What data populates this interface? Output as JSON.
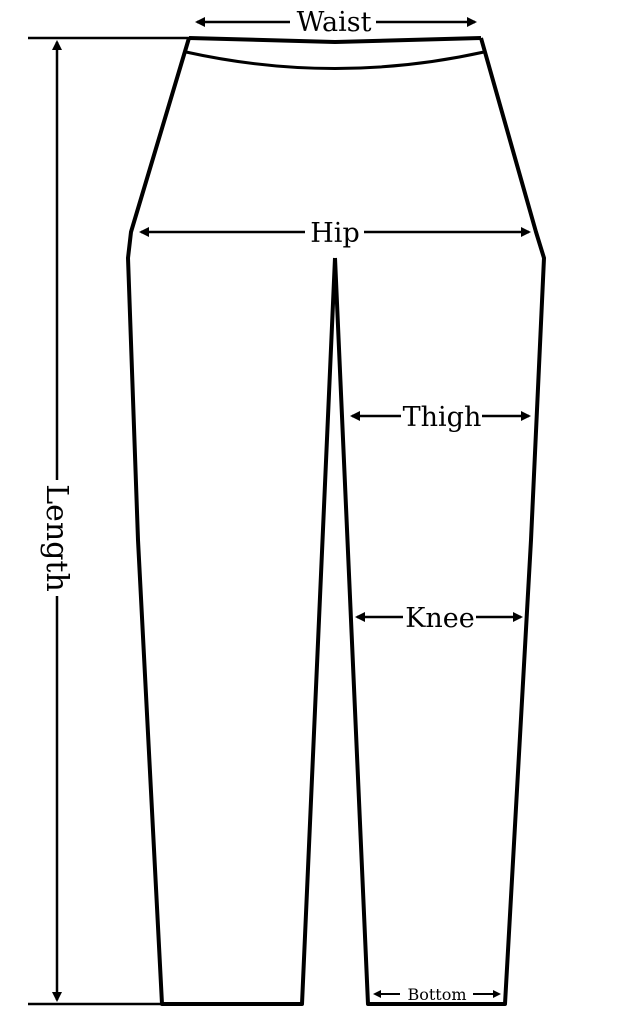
{
  "labels": {
    "waist": "Waist",
    "hip": "Hip",
    "thigh": "Thigh",
    "knee": "Knee",
    "bottom": "Bottom",
    "length": "Length"
  },
  "colors": {
    "line": "#000000",
    "background": "#ffffff"
  }
}
